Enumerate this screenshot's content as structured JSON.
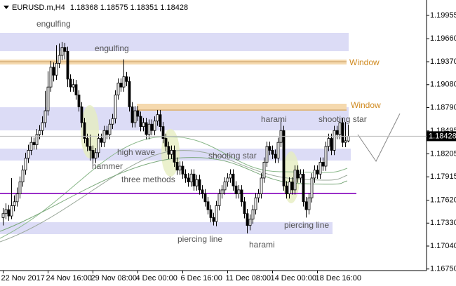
{
  "chart_data": {
    "type": "candlestick",
    "title": "EURUSD.m,H4",
    "ylim": [
      1.1673,
      1.2015
    ],
    "yticks": [
      1.19955,
      {
        "value": 1.1966,
        "label": "1.19660"
      },
      {
        "value": 1.1937,
        "label": "1.19370"
      },
      {
        "value": 1.1908,
        "label": "1.19080"
      },
      {
        "value": 1.1879,
        "label": "1.18790"
      },
      1.18495,
      1.18205,
      1.17915,
      {
        "value": 1.1762,
        "label": "1.17620"
      },
      {
        "value": 1.1733,
        "label": "1.17330"
      },
      {
        "value": 1.1704,
        "label": "1.17040"
      },
      {
        "value": 1.1675,
        "label": "1.16750"
      }
    ],
    "up_color": "#ffffff",
    "down_color": "#000000",
    "categories": [
      "22 Nov 2017",
      null,
      null,
      null,
      null,
      null,
      null,
      null,
      null,
      null,
      null,
      null,
      null,
      null,
      null,
      null,
      "24 Nov 16:00",
      null,
      null,
      null,
      null,
      null,
      null,
      null,
      null,
      null,
      null,
      null,
      null,
      null,
      null,
      null,
      "29 Nov 08:00",
      null,
      null,
      null,
      null,
      null,
      null,
      null,
      null,
      null,
      null,
      null,
      null,
      null,
      null,
      null,
      "4 Dec 00:00",
      null,
      null,
      null,
      null,
      null,
      null,
      null,
      null,
      null,
      null,
      null,
      null,
      null,
      null,
      null,
      "6 Dec 16:00",
      null,
      null,
      null,
      null,
      null,
      null,
      null,
      null,
      null,
      null,
      null,
      null,
      null,
      null,
      null,
      "11 Dec 08:00",
      null,
      null,
      null,
      null,
      null,
      null,
      null,
      null,
      null,
      null,
      null,
      null,
      null,
      null,
      null,
      "14 Dec 00:00",
      null,
      null,
      null,
      null,
      null,
      null,
      null,
      null,
      null,
      null,
      null,
      null,
      null,
      null,
      null,
      "18 Dec 16:00",
      null,
      null,
      null,
      null,
      null,
      null,
      null,
      null,
      null,
      null,
      null
    ],
    "candles": [
      [
        1.174,
        1.1752,
        1.173,
        1.1745
      ],
      [
        1.1745,
        1.1758,
        1.1738,
        1.175
      ],
      [
        1.175,
        1.1756,
        1.1736,
        1.1742
      ],
      [
        1.1742,
        1.179,
        1.1738,
        1.1755
      ],
      [
        1.1755,
        1.1768,
        1.1748,
        1.176
      ],
      [
        1.176,
        1.1778,
        1.1754,
        1.177
      ],
      [
        1.177,
        1.1792,
        1.1764,
        1.1785
      ],
      [
        1.1785,
        1.1806,
        1.1779,
        1.18
      ],
      [
        1.18,
        1.1822,
        1.1794,
        1.1815
      ],
      [
        1.1815,
        1.1832,
        1.1809,
        1.1825
      ],
      [
        1.1825,
        1.1842,
        1.1819,
        1.1835
      ],
      [
        1.1835,
        1.1841,
        1.1826,
        1.1832
      ],
      [
        1.1832,
        1.1852,
        1.1826,
        1.1845
      ],
      [
        1.1845,
        1.1857,
        1.1839,
        1.185
      ],
      [
        1.185,
        1.1868,
        1.1844,
        1.186
      ],
      [
        1.186,
        1.19,
        1.1854,
        1.1875
      ],
      [
        1.1875,
        1.1925,
        1.1869,
        1.1905
      ],
      [
        1.1905,
        1.1938,
        1.1899,
        1.193
      ],
      [
        1.193,
        1.1936,
        1.1912,
        1.192
      ],
      [
        1.192,
        1.1958,
        1.1914,
        1.1935
      ],
      [
        1.1935,
        1.196,
        1.1929,
        1.1945
      ],
      [
        1.1945,
        1.1962,
        1.1939,
        1.1955
      ],
      [
        1.1955,
        1.1961,
        1.194,
        1.195
      ],
      [
        1.195,
        1.1956,
        1.1905,
        1.1915
      ],
      [
        1.1915,
        1.1921,
        1.1899,
        1.1905
      ],
      [
        1.1905,
        1.1915,
        1.1899,
        1.1908
      ],
      [
        1.1908,
        1.1914,
        1.1889,
        1.1895
      ],
      [
        1.1895,
        1.1901,
        1.1874,
        1.188
      ],
      [
        1.188,
        1.1886,
        1.1854,
        1.186
      ],
      [
        1.186,
        1.1866,
        1.1834,
        1.184
      ],
      [
        1.184,
        1.1846,
        1.1824,
        1.183
      ],
      [
        1.183,
        1.1845,
        1.1812,
        1.1825
      ],
      [
        1.1825,
        1.1831,
        1.1808,
        1.1815
      ],
      [
        1.1815,
        1.1828,
        1.1809,
        1.1822
      ],
      [
        1.1822,
        1.1846,
        1.1816,
        1.184
      ],
      [
        1.184,
        1.1846,
        1.1829,
        1.1835
      ],
      [
        1.1835,
        1.1856,
        1.1829,
        1.185
      ],
      [
        1.185,
        1.1856,
        1.1839,
        1.1845
      ],
      [
        1.1845,
        1.1864,
        1.1839,
        1.1858
      ],
      [
        1.1858,
        1.1871,
        1.1852,
        1.1865
      ],
      [
        1.1865,
        1.1901,
        1.1859,
        1.1895
      ],
      [
        1.1895,
        1.1916,
        1.1889,
        1.191
      ],
      [
        1.191,
        1.1916,
        1.1899,
        1.1905
      ],
      [
        1.1905,
        1.194,
        1.1899,
        1.1918
      ],
      [
        1.1918,
        1.1924,
        1.1906,
        1.1912
      ],
      [
        1.1912,
        1.1918,
        1.1874,
        1.188
      ],
      [
        1.188,
        1.1886,
        1.1854,
        1.186
      ],
      [
        1.186,
        1.1881,
        1.1854,
        1.1875
      ],
      [
        1.1875,
        1.1881,
        1.1862,
        1.1868
      ],
      [
        1.1868,
        1.1874,
        1.1849,
        1.1855
      ],
      [
        1.1855,
        1.1866,
        1.1849,
        1.186
      ],
      [
        1.186,
        1.1866,
        1.1839,
        1.1845
      ],
      [
        1.1845,
        1.1864,
        1.1839,
        1.1858
      ],
      [
        1.1858,
        1.1864,
        1.1844,
        1.185
      ],
      [
        1.185,
        1.1868,
        1.1844,
        1.1862
      ],
      [
        1.1862,
        1.1876,
        1.1856,
        1.187
      ],
      [
        1.187,
        1.1876,
        1.1849,
        1.1855
      ],
      [
        1.1855,
        1.1861,
        1.1834,
        1.184
      ],
      [
        1.184,
        1.1846,
        1.1824,
        1.183
      ],
      [
        1.183,
        1.1836,
        1.1814,
        1.182
      ],
      [
        1.182,
        1.1831,
        1.1814,
        1.1825
      ],
      [
        1.1825,
        1.1831,
        1.1804,
        1.181
      ],
      [
        1.181,
        1.1816,
        1.1794,
        1.18
      ],
      [
        1.18,
        1.1811,
        1.1794,
        1.1805
      ],
      [
        1.1805,
        1.1811,
        1.1789,
        1.1795
      ],
      [
        1.1795,
        1.1801,
        1.1784,
        1.179
      ],
      [
        1.179,
        1.1796,
        1.1779,
        1.1785
      ],
      [
        1.1785,
        1.1801,
        1.1779,
        1.1795
      ],
      [
        1.1795,
        1.1801,
        1.1774,
        1.178
      ],
      [
        1.178,
        1.1794,
        1.1774,
        1.1788
      ],
      [
        1.1788,
        1.1794,
        1.1769,
        1.1775
      ],
      [
        1.1775,
        1.1781,
        1.1764,
        1.177
      ],
      [
        1.177,
        1.1776,
        1.1754,
        1.176
      ],
      [
        1.176,
        1.1766,
        1.1744,
        1.175
      ],
      [
        1.175,
        1.1756,
        1.1734,
        1.174
      ],
      [
        1.174,
        1.1746,
        1.173,
        1.1735
      ],
      [
        1.1735,
        1.1761,
        1.1729,
        1.1755
      ],
      [
        1.1755,
        1.1776,
        1.1749,
        1.177
      ],
      [
        1.177,
        1.1781,
        1.1764,
        1.1775
      ],
      [
        1.1775,
        1.1791,
        1.1769,
        1.1785
      ],
      [
        1.1785,
        1.1796,
        1.1779,
        1.179
      ],
      [
        1.179,
        1.1801,
        1.1784,
        1.1795
      ],
      [
        1.1795,
        1.1801,
        1.1774,
        1.178
      ],
      [
        1.178,
        1.1786,
        1.1764,
        1.177
      ],
      [
        1.177,
        1.1781,
        1.1764,
        1.1775
      ],
      [
        1.1775,
        1.1781,
        1.1754,
        1.176
      ],
      [
        1.176,
        1.1766,
        1.1739,
        1.1745
      ],
      [
        1.1745,
        1.1751,
        1.172,
        1.173
      ],
      [
        1.173,
        1.1744,
        1.1724,
        1.1738
      ],
      [
        1.1738,
        1.1756,
        1.1732,
        1.175
      ],
      [
        1.175,
        1.1771,
        1.1744,
        1.1765
      ],
      [
        1.1765,
        1.1776,
        1.1759,
        1.177
      ],
      [
        1.177,
        1.1796,
        1.1764,
        1.179
      ],
      [
        1.179,
        1.1816,
        1.1784,
        1.181
      ],
      [
        1.181,
        1.1836,
        1.1804,
        1.183
      ],
      [
        1.183,
        1.1836,
        1.1819,
        1.1825
      ],
      [
        1.1825,
        1.1831,
        1.1814,
        1.182
      ],
      [
        1.182,
        1.1826,
        1.1809,
        1.1815
      ],
      [
        1.1815,
        1.1841,
        1.1809,
        1.1835
      ],
      [
        1.1835,
        1.1865,
        1.1829,
        1.185
      ],
      [
        1.185,
        1.1856,
        1.1774,
        1.178
      ],
      [
        1.178,
        1.1786,
        1.1764,
        1.177
      ],
      [
        1.177,
        1.1791,
        1.1764,
        1.1785
      ],
      [
        1.1785,
        1.1791,
        1.1769,
        1.1775
      ],
      [
        1.1775,
        1.1806,
        1.1769,
        1.18
      ],
      [
        1.18,
        1.1806,
        1.1784,
        1.179
      ],
      [
        1.179,
        1.1801,
        1.1784,
        1.1795
      ],
      [
        1.1795,
        1.1801,
        1.1754,
        1.176
      ],
      [
        1.176,
        1.1766,
        1.174,
        1.175
      ],
      [
        1.175,
        1.1771,
        1.1744,
        1.1765
      ],
      [
        1.1765,
        1.1796,
        1.1759,
        1.179
      ],
      [
        1.179,
        1.1806,
        1.1784,
        1.18
      ],
      [
        1.18,
        1.1806,
        1.1789,
        1.1795
      ],
      [
        1.1795,
        1.1816,
        1.1789,
        1.181
      ],
      [
        1.181,
        1.1816,
        1.1799,
        1.1805
      ],
      [
        1.1805,
        1.1836,
        1.1799,
        1.183
      ],
      [
        1.183,
        1.1846,
        1.1824,
        1.184
      ],
      [
        1.184,
        1.1846,
        1.1819,
        1.1825
      ],
      [
        1.1825,
        1.1856,
        1.1819,
        1.185
      ],
      [
        1.185,
        1.1856,
        1.1839,
        1.1845
      ],
      [
        1.1845,
        1.1866,
        1.1839,
        1.186
      ],
      [
        1.186,
        1.1866,
        1.1829,
        1.1835
      ],
      [
        1.1835,
        1.1861,
        1.1829,
        1.1837
      ],
      [
        1.18368,
        1.18575,
        1.18351,
        1.18428
      ]
    ],
    "annotations": [
      "engulfing",
      "engulfing",
      "Window",
      "Window",
      "harami",
      "shooting star",
      "high wave",
      "hammer",
      "shooting star",
      "three methods",
      "piercing line",
      "harami",
      "piercing line"
    ]
  }
}
